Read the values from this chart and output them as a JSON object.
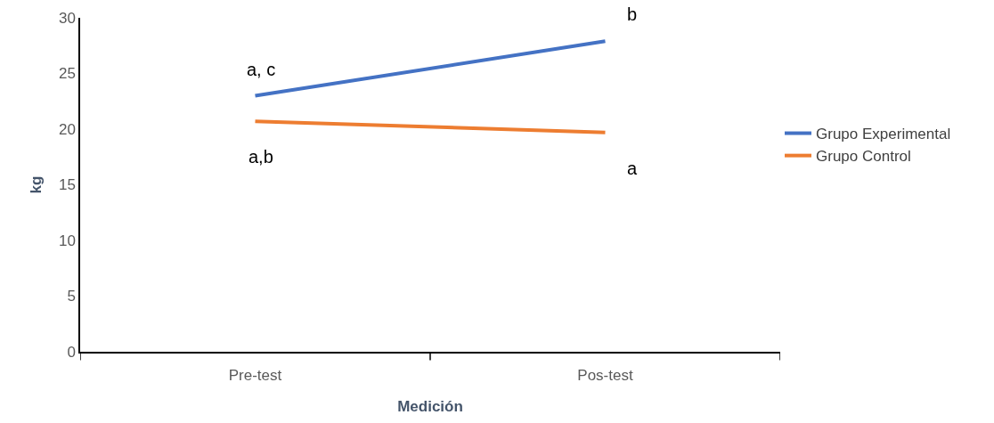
{
  "chart_data": {
    "type": "line",
    "xlabel": "Medición",
    "ylabel": "kg",
    "categories": [
      "Pre-test",
      "Pos-test"
    ],
    "series": [
      {
        "name": "Grupo Experimental",
        "color": "#4472c4",
        "values": [
          23,
          27.9
        ]
      },
      {
        "name": "Grupo Control",
        "color": "#ed7d31",
        "values": [
          20.7,
          19.7
        ]
      }
    ],
    "ylim": [
      0,
      30
    ],
    "yticks": [
      0,
      5,
      10,
      15,
      20,
      25,
      30
    ],
    "grid": false,
    "legend": "right",
    "marker": "none",
    "line_style": "solid",
    "annotations": [
      {
        "text": "a, c",
        "x": "Pre-test",
        "y": 23
      },
      {
        "text": "b",
        "x": "Pos-test",
        "y": 27.9
      },
      {
        "text": "a,b",
        "x": "Pre-test",
        "y": 20.7
      },
      {
        "text": "a",
        "x": "Pos-test",
        "y": 19.7
      }
    ]
  }
}
